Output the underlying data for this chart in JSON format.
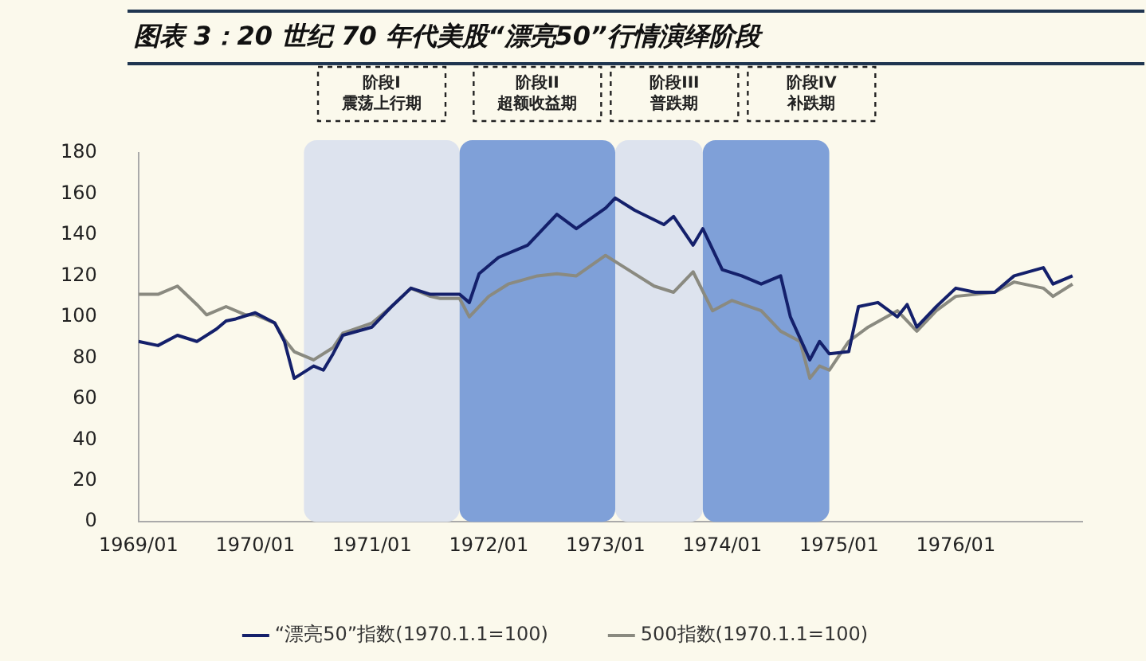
{
  "chart_data": {
    "type": "line",
    "title": "图表 3：20 世纪 70 年代美股“漂亮50”行情演绎阶段",
    "xlim": [
      "1969-01",
      "1977-02"
    ],
    "xticks": [
      {
        "value": "1969-01",
        "label": "1969/01"
      },
      {
        "value": "1970-01",
        "label": "1970/01"
      },
      {
        "value": "1971-01",
        "label": "1971/01"
      },
      {
        "value": "1972-01",
        "label": "1972/01"
      },
      {
        "value": "1973-01",
        "label": "1973/01"
      },
      {
        "value": "1974-01",
        "label": "1974/01"
      },
      {
        "value": "1975-01",
        "label": "1975/01"
      },
      {
        "value": "1976-01",
        "label": "1976/01"
      }
    ],
    "ylim": [
      0,
      180
    ],
    "yticks": [
      0,
      20,
      40,
      60,
      80,
      100,
      120,
      140,
      160,
      180
    ],
    "grid": false,
    "legend": "bottom",
    "marker": "none",
    "line_style": "solid",
    "bands": [
      {
        "axis": "x",
        "from": "1970-06",
        "to": "1971-10",
        "label": "阶段I 震荡上行期",
        "color": "#dde3ee"
      },
      {
        "axis": "x",
        "from": "1971-10",
        "to": "1973-02",
        "label": "阶段II 超额收益期",
        "color": "#7fa0d8"
      },
      {
        "axis": "x",
        "from": "1973-02",
        "to": "1973-11",
        "label": "阶段III 普跌期",
        "color": "#dde3ee"
      },
      {
        "axis": "x",
        "from": "1973-11",
        "to": "1974-12",
        "label": "阶段IV 补跌期",
        "color": "#7fa0d8"
      }
    ],
    "series": [
      {
        "name": "“漂亮50”指数(1970.1.1=100)",
        "color": "#14206b",
        "x": [
          "1969-01",
          "1969-03",
          "1969-05",
          "1969-07",
          "1969-09",
          "1969-10",
          "1969-11",
          "1970-01",
          "1970-03",
          "1970-04",
          "1970-05",
          "1970-07",
          "1970-08",
          "1970-09",
          "1970-10",
          "1971-01",
          "1971-03",
          "1971-05",
          "1971-07",
          "1971-08",
          "1971-10",
          "1971-11",
          "1971-12",
          "1972-02",
          "1972-05",
          "1972-08",
          "1972-10",
          "1973-01",
          "1973-02",
          "1973-04",
          "1973-07",
          "1973-08",
          "1973-10",
          "1973-11",
          "1974-01",
          "1974-03",
          "1974-05",
          "1974-07",
          "1974-08",
          "1974-10",
          "1974-11",
          "1974-12",
          "1975-02",
          "1975-03",
          "1975-05",
          "1975-07",
          "1975-08",
          "1975-09",
          "1975-11",
          "1976-01",
          "1976-03",
          "1976-05",
          "1976-07",
          "1976-10",
          "1976-11",
          "1977-01"
        ],
        "values": [
          88,
          86,
          91,
          88,
          94,
          98,
          99,
          102,
          97,
          88,
          70,
          76,
          74,
          82,
          91,
          95,
          105,
          114,
          111,
          111,
          111,
          107,
          121,
          129,
          135,
          150,
          143,
          153,
          158,
          152,
          145,
          149,
          135,
          143,
          123,
          120,
          116,
          120,
          100,
          79,
          88,
          82,
          83,
          105,
          107,
          100,
          106,
          95,
          105,
          114,
          112,
          112,
          120,
          124,
          116,
          120
        ]
      },
      {
        "name": "500指数(1970.1.1=100)",
        "color": "#8a8a80",
        "x": [
          "1969-01",
          "1969-03",
          "1969-05",
          "1969-07",
          "1969-08",
          "1969-10",
          "1969-12",
          "1970-01",
          "1970-03",
          "1970-04",
          "1970-05",
          "1970-07",
          "1970-09",
          "1970-10",
          "1971-01",
          "1971-03",
          "1971-05",
          "1971-07",
          "1971-08",
          "1971-10",
          "1971-11",
          "1972-01",
          "1972-03",
          "1972-06",
          "1972-08",
          "1972-10",
          "1973-01",
          "1973-03",
          "1973-06",
          "1973-08",
          "1973-10",
          "1973-12",
          "1974-02",
          "1974-05",
          "1974-07",
          "1974-09",
          "1974-10",
          "1974-11",
          "1974-12",
          "1975-02",
          "1975-04",
          "1975-07",
          "1975-09",
          "1975-11",
          "1976-01",
          "1976-05",
          "1976-07",
          "1976-10",
          "1976-11",
          "1977-01"
        ],
        "values": [
          111,
          111,
          115,
          106,
          101,
          105,
          101,
          101,
          97,
          89,
          83,
          79,
          85,
          92,
          97,
          105,
          114,
          110,
          109,
          109,
          100,
          110,
          116,
          120,
          121,
          120,
          130,
          124,
          115,
          112,
          122,
          103,
          108,
          103,
          93,
          88,
          70,
          76,
          74,
          88,
          95,
          103,
          93,
          103,
          110,
          112,
          117,
          114,
          110,
          116
        ]
      }
    ]
  }
}
